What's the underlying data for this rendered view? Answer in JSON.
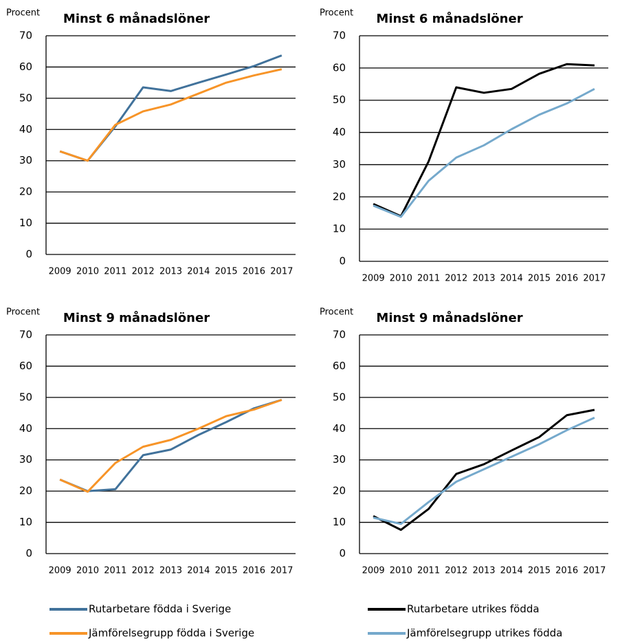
{
  "chart_data": [
    {
      "type": "line",
      "title": "Minst 6 månadslöner",
      "y_label": "Procent",
      "categories": [
        "2009",
        "2010",
        "2011",
        "2012",
        "2013",
        "2014",
        "2015",
        "2016",
        "2017"
      ],
      "ylim": [
        0,
        70
      ],
      "yticks": [
        0,
        10,
        20,
        30,
        40,
        50,
        60,
        70
      ],
      "grid": true,
      "series": [
        {
          "name": "Rutarbetare födda i Sverige",
          "color": "#41729b",
          "values": [
            33,
            30,
            41,
            53.5,
            52.3,
            55,
            57.6,
            60.3,
            63.7
          ]
        },
        {
          "name": "Jämförelsegrupp födda i Sverige",
          "color": "#f79428",
          "values": [
            33,
            30,
            41.5,
            45.8,
            48,
            51.5,
            55,
            57.3,
            59.3
          ]
        }
      ]
    },
    {
      "type": "line",
      "title": "Minst 6 månadslöner",
      "y_label": "Procent",
      "categories": [
        "2009",
        "2010",
        "2011",
        "2012",
        "2013",
        "2014",
        "2015",
        "2016",
        "2017"
      ],
      "ylim": [
        0,
        70
      ],
      "yticks": [
        0,
        10,
        20,
        30,
        40,
        50,
        60,
        70
      ],
      "grid": true,
      "series": [
        {
          "name": "Rutarbetare utrikes födda",
          "color": "#000000",
          "values": [
            17.8,
            14,
            31,
            54,
            52.3,
            53.5,
            58.2,
            61.2,
            60.8
          ]
        },
        {
          "name": "Jämförelsegrupp utrikes födda",
          "color": "#75a9cc",
          "values": [
            17.3,
            13.8,
            25,
            32.2,
            36,
            41,
            45.5,
            49,
            53.5
          ]
        }
      ]
    },
    {
      "type": "line",
      "title": "Minst 9 månadslöner",
      "y_label": "Procent",
      "categories": [
        "2009",
        "2010",
        "2011",
        "2012",
        "2013",
        "2014",
        "2015",
        "2016",
        "2017"
      ],
      "ylim": [
        0,
        70
      ],
      "yticks": [
        0,
        10,
        20,
        30,
        40,
        50,
        60,
        70
      ],
      "grid": true,
      "series": [
        {
          "name": "Rutarbetare födda i Sverige",
          "color": "#41729b",
          "values": [
            23.7,
            20,
            20.6,
            31.5,
            33.3,
            38,
            42.1,
            46.5,
            49.2
          ]
        },
        {
          "name": "Jämförelsegrupp födda i Sverige",
          "color": "#f79428",
          "values": [
            23.7,
            19.8,
            29,
            34.2,
            36.4,
            40,
            44,
            46.1,
            49.2
          ]
        }
      ]
    },
    {
      "type": "line",
      "title": "Minst 9 månadslöner",
      "y_label": "Procent",
      "categories": [
        "2009",
        "2010",
        "2011",
        "2012",
        "2013",
        "2014",
        "2015",
        "2016",
        "2017"
      ],
      "ylim": [
        0,
        70
      ],
      "yticks": [
        0,
        10,
        20,
        30,
        40,
        50,
        60,
        70
      ],
      "grid": true,
      "series": [
        {
          "name": "Rutarbetare utrikes födda",
          "color": "#000000",
          "values": [
            12,
            7.6,
            14.3,
            25.5,
            28.6,
            33,
            37.3,
            44.3,
            46
          ]
        },
        {
          "name": "Jämförelsegrupp utrikes födda",
          "color": "#75a9cc",
          "values": [
            11.5,
            9.5,
            16.5,
            23,
            27,
            31,
            35,
            39.5,
            43.5
          ]
        }
      ]
    }
  ]
}
